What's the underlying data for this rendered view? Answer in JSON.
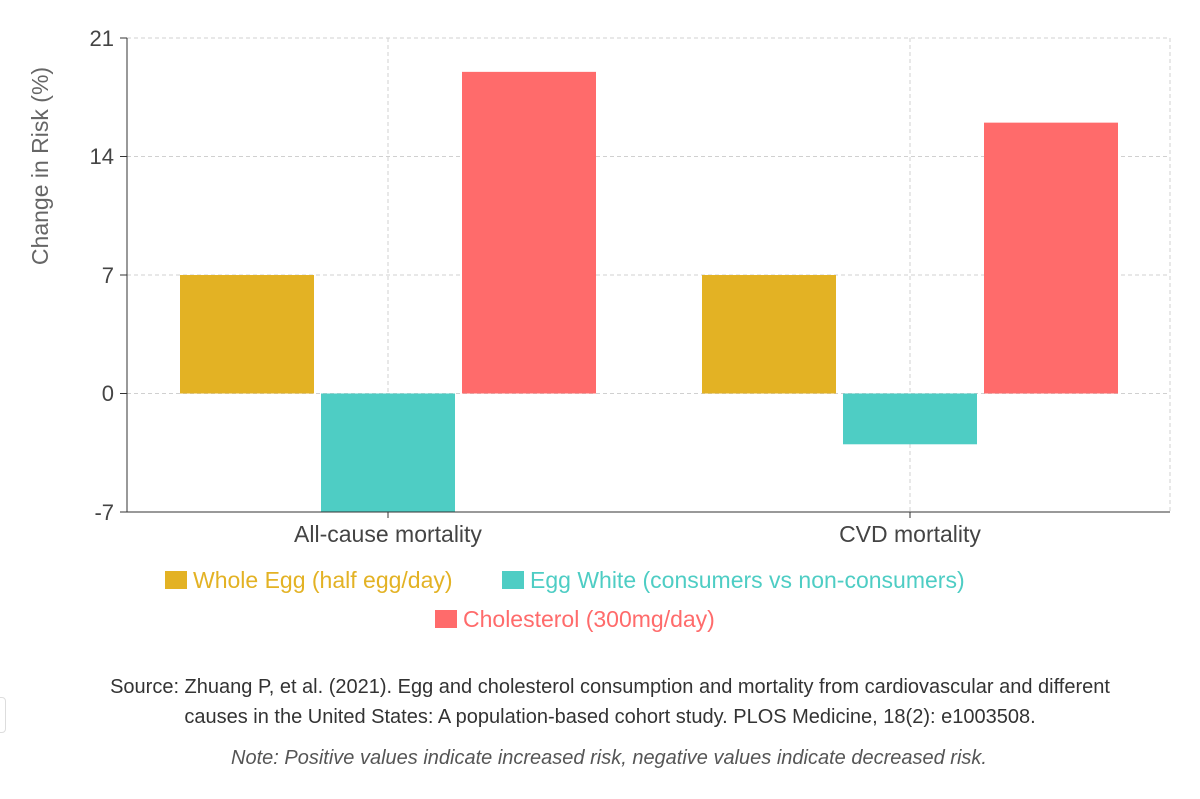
{
  "chart_data": {
    "type": "bar",
    "categories": [
      "All-cause mortality",
      "CVD mortality"
    ],
    "series": [
      {
        "name": "Whole Egg (half egg/day)",
        "values": [
          7,
          7
        ],
        "color": "#e3b224"
      },
      {
        "name": "Egg White (consumers vs non-consumers)",
        "values": [
          -7,
          -3
        ],
        "color": "#4ecdc4"
      },
      {
        "name": "Cholesterol (300mg/day)",
        "values": [
          19,
          16
        ],
        "color": "#ff6b6b"
      }
    ],
    "ylabel": "Change in Risk (%)",
    "xlabel": "",
    "ylim": [
      -7,
      21
    ],
    "yticks": [
      "21",
      "14",
      "7",
      "0",
      "-7"
    ],
    "grid": true,
    "legend_position": "bottom"
  },
  "footer": {
    "source_line1": "Source: Zhuang P, et al. (2021). Egg and cholesterol consumption and mortality from cardiovascular and different",
    "source_line2": "causes in the United States: A population-based cohort study. PLOS Medicine, 18(2): e1003508.",
    "note": "Note: Positive values indicate increased risk, negative values indicate decreased risk."
  }
}
